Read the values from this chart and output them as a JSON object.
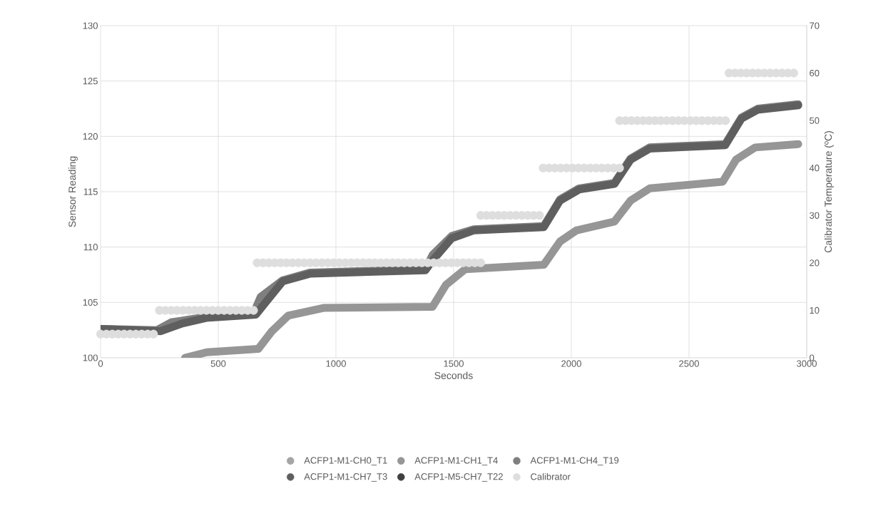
{
  "chart_data": {
    "type": "line",
    "xlabel": "Seconds",
    "ylabel": "Sensor Reading",
    "y2label": "Calibrator Temperature (ºC)",
    "xlim": [
      0,
      3000
    ],
    "xticks": [
      0,
      500,
      1000,
      1500,
      2000,
      2500,
      3000
    ],
    "ylim": [
      100,
      130
    ],
    "yticks": [
      100,
      105,
      110,
      115,
      120,
      125,
      130
    ],
    "y2lim": [
      0,
      70
    ],
    "y2ticks": [
      0,
      10,
      20,
      30,
      40,
      50,
      60,
      70
    ],
    "grid": true,
    "legend": "bottom",
    "series": [
      {
        "name": "ACFP1-M1-CH0_T1",
        "color": "#a5a5a5"
      },
      {
        "name": "ACFP1-M1-CH1_T4",
        "color": "#969696",
        "x": [
          359,
          451,
          670,
          728,
          797,
          947,
          1410,
          1468,
          1549,
          1883,
          1952,
          2021,
          2183,
          2252,
          2333,
          2643,
          2700,
          2781,
          2964
        ],
        "values": [
          100.0,
          100.5,
          100.8,
          102.4,
          103.8,
          104.5,
          104.6,
          106.6,
          108.0,
          108.4,
          110.5,
          111.5,
          112.3,
          114.2,
          115.3,
          115.9,
          117.9,
          119.0,
          119.3
        ]
      },
      {
        "name": "ACFP1-M1-CH4_T19",
        "color": "#7f7f7f",
        "x": [
          0,
          240,
          300,
          449,
          650,
          680,
          774,
          891,
          1380,
          1411,
          1492,
          1585,
          1883,
          1952,
          2033,
          2183,
          2252,
          2333,
          2654,
          2723,
          2792,
          2964
        ],
        "values": [
          102.6,
          102.5,
          103.2,
          103.7,
          104.0,
          105.5,
          107.0,
          107.7,
          108.0,
          109.3,
          111.0,
          111.6,
          111.9,
          114.3,
          115.3,
          115.8,
          118.0,
          119.0,
          119.3,
          121.7,
          122.5,
          122.9
        ]
      },
      {
        "name": "ACFP1-M1-CH7_T3",
        "color": "#5f5f5f",
        "x": [
          0,
          254,
          347,
          449,
          660,
          705,
          774,
          891,
          1380,
          1411,
          1492,
          1585,
          1883,
          1952,
          2033,
          2183,
          2252,
          2333,
          2654,
          2723,
          2792,
          2964
        ],
        "values": [
          102.6,
          102.4,
          103.1,
          103.6,
          103.9,
          105.1,
          106.9,
          107.6,
          107.9,
          108.8,
          110.8,
          111.5,
          111.8,
          114.2,
          115.2,
          115.7,
          117.9,
          118.9,
          119.2,
          121.6,
          122.4,
          122.8
        ]
      },
      {
        "name": "ACFP1-M5-CH7_T22",
        "color": "#404040"
      },
      {
        "name": "Calibrator",
        "color": "#dedede",
        "axis": "y2",
        "type": "scatter",
        "x": [
          0,
          25,
          50,
          75,
          100,
          125,
          150,
          175,
          200,
          225,
          250,
          275,
          300,
          325,
          350,
          375,
          400,
          425,
          450,
          475,
          500,
          525,
          550,
          575,
          600,
          625,
          650,
          665,
          690,
          715,
          740,
          765,
          790,
          815,
          840,
          865,
          890,
          915,
          940,
          965,
          990,
          1015,
          1040,
          1065,
          1090,
          1115,
          1140,
          1165,
          1190,
          1215,
          1240,
          1265,
          1290,
          1315,
          1340,
          1365,
          1390,
          1415,
          1440,
          1465,
          1490,
          1515,
          1540,
          1565,
          1590,
          1615,
          1615,
          1640,
          1665,
          1690,
          1715,
          1740,
          1765,
          1790,
          1815,
          1840,
          1865,
          1880,
          1905,
          1930,
          1955,
          1980,
          2005,
          2030,
          2055,
          2080,
          2105,
          2130,
          2155,
          2180,
          2205,
          2205,
          2230,
          2255,
          2280,
          2305,
          2330,
          2355,
          2380,
          2405,
          2430,
          2455,
          2480,
          2505,
          2530,
          2555,
          2580,
          2605,
          2630,
          2655,
          2670,
          2695,
          2720,
          2745,
          2770,
          2795,
          2820,
          2845,
          2870,
          2895,
          2920,
          2945
        ],
        "values": [
          5,
          5,
          5,
          5,
          5,
          5,
          5,
          5,
          5,
          5,
          10,
          10,
          10,
          10,
          10,
          10,
          10,
          10,
          10,
          10,
          10,
          10,
          10,
          10,
          10,
          10,
          10,
          20,
          20,
          20,
          20,
          20,
          20,
          20,
          20,
          20,
          20,
          20,
          20,
          20,
          20,
          20,
          20,
          20,
          20,
          20,
          20,
          20,
          20,
          20,
          20,
          20,
          20,
          20,
          20,
          20,
          20,
          20,
          20,
          20,
          20,
          20,
          20,
          20,
          20,
          20,
          30,
          30,
          30,
          30,
          30,
          30,
          30,
          30,
          30,
          30,
          30,
          40,
          40,
          40,
          40,
          40,
          40,
          40,
          40,
          40,
          40,
          40,
          40,
          40,
          40,
          50,
          50,
          50,
          50,
          50,
          50,
          50,
          50,
          50,
          50,
          50,
          50,
          50,
          50,
          50,
          50,
          50,
          50,
          50,
          60,
          60,
          60,
          60,
          60,
          60,
          60,
          60,
          60,
          60,
          60,
          60
        ]
      }
    ]
  }
}
